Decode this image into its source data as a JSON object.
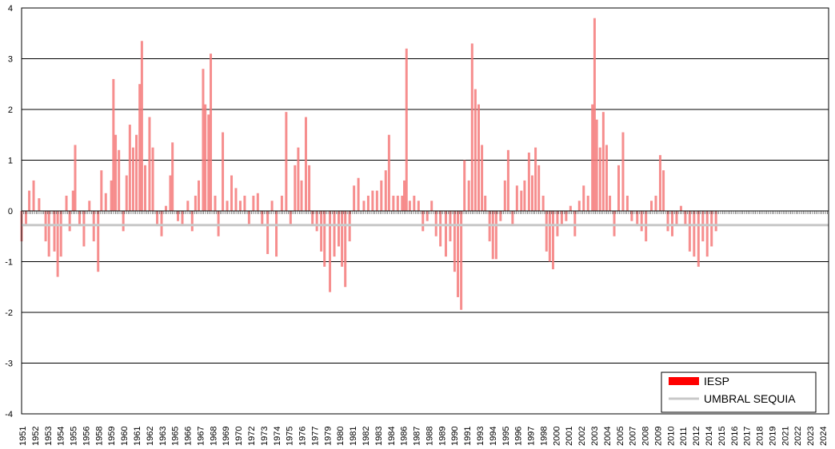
{
  "chart_data": {
    "type": "bar",
    "ylim": [
      -4,
      4
    ],
    "y_ticks": [
      "4",
      "3",
      "2",
      "1",
      "0",
      "-1",
      "-2",
      "-3",
      "-4"
    ],
    "grid": "horizontal",
    "legend_position": "bottom-right",
    "x_tick_labels": [
      "1951",
      "1952",
      "1953",
      "1954",
      "1955",
      "1956",
      "1958",
      "1959",
      "1960",
      "1961",
      "1962",
      "1963",
      "1965",
      "1966",
      "1967",
      "1968",
      "1969",
      "1970",
      "1972",
      "1973",
      "1974",
      "1975",
      "1976",
      "1977",
      "1979",
      "1980",
      "1981",
      "1982",
      "1983",
      "1984",
      "1986",
      "1987",
      "1988",
      "1989",
      "1990",
      "1991",
      "1993",
      "1994",
      "1995",
      "1996",
      "1997",
      "1998",
      "2000",
      "2001",
      "2002",
      "2003",
      "2004",
      "2005",
      "2007",
      "2008",
      "2009",
      "2010",
      "2011",
      "2012",
      "2014",
      "2015",
      "2016",
      "2017",
      "2018",
      "2019",
      "2021",
      "2022",
      "2023",
      "2024"
    ],
    "series": [
      {
        "name": "IESP",
        "color": "#ff0000",
        "bar_color": "#f47a7a"
      },
      {
        "name": "UMBRAL SEQUIA",
        "color": "#c8c8c8",
        "value": -0.28
      }
    ],
    "x_range": [
      1951.0,
      2024.8
    ],
    "monthly_sample": [
      [
        1951.0,
        -0.6
      ],
      [
        1951.4,
        -0.3
      ],
      [
        1951.7,
        0.4
      ],
      [
        1952.1,
        0.6
      ],
      [
        1952.6,
        0.25
      ],
      [
        1953.2,
        -0.6
      ],
      [
        1953.5,
        -0.9
      ],
      [
        1954.0,
        -0.8
      ],
      [
        1954.3,
        -1.3
      ],
      [
        1954.6,
        -0.9
      ],
      [
        1955.1,
        0.3
      ],
      [
        1955.4,
        -0.4
      ],
      [
        1955.7,
        0.4
      ],
      [
        1955.9,
        1.3
      ],
      [
        1956.3,
        -0.3
      ],
      [
        1956.7,
        -0.7
      ],
      [
        1957.2,
        0.2
      ],
      [
        1957.6,
        -0.6
      ],
      [
        1958.0,
        -1.2
      ],
      [
        1958.3,
        0.8
      ],
      [
        1958.7,
        0.35
      ],
      [
        1959.2,
        0.6
      ],
      [
        1959.4,
        2.6
      ],
      [
        1959.6,
        1.5
      ],
      [
        1959.9,
        1.2
      ],
      [
        1960.3,
        -0.4
      ],
      [
        1960.6,
        0.7
      ],
      [
        1960.9,
        1.7
      ],
      [
        1961.2,
        1.25
      ],
      [
        1961.5,
        1.5
      ],
      [
        1961.8,
        2.5
      ],
      [
        1962.0,
        3.35
      ],
      [
        1962.3,
        0.9
      ],
      [
        1962.7,
        1.85
      ],
      [
        1963.0,
        1.25
      ],
      [
        1963.4,
        -0.3
      ],
      [
        1963.8,
        -0.5
      ],
      [
        1964.2,
        0.1
      ],
      [
        1964.6,
        0.7
      ],
      [
        1964.8,
        1.35
      ],
      [
        1965.3,
        -0.2
      ],
      [
        1965.7,
        -0.3
      ],
      [
        1966.2,
        0.2
      ],
      [
        1966.6,
        -0.4
      ],
      [
        1966.9,
        0.3
      ],
      [
        1967.2,
        0.6
      ],
      [
        1967.6,
        2.8
      ],
      [
        1967.8,
        2.1
      ],
      [
        1968.1,
        1.9
      ],
      [
        1968.3,
        3.1
      ],
      [
        1968.7,
        0.3
      ],
      [
        1969.0,
        -0.5
      ],
      [
        1969.4,
        1.55
      ],
      [
        1969.8,
        0.2
      ],
      [
        1970.2,
        0.7
      ],
      [
        1970.6,
        0.45
      ],
      [
        1971.0,
        0.2
      ],
      [
        1971.4,
        0.3
      ],
      [
        1971.8,
        -0.3
      ],
      [
        1972.2,
        0.3
      ],
      [
        1972.6,
        0.35
      ],
      [
        1973.0,
        -0.3
      ],
      [
        1973.5,
        -0.85
      ],
      [
        1973.9,
        0.2
      ],
      [
        1974.3,
        -0.9
      ],
      [
        1974.8,
        0.3
      ],
      [
        1975.2,
        1.95
      ],
      [
        1975.6,
        -0.3
      ],
      [
        1976.0,
        0.9
      ],
      [
        1976.3,
        1.25
      ],
      [
        1976.6,
        0.6
      ],
      [
        1977.0,
        1.85
      ],
      [
        1977.3,
        0.9
      ],
      [
        1977.6,
        -0.3
      ],
      [
        1978.0,
        -0.4
      ],
      [
        1978.4,
        -0.8
      ],
      [
        1978.7,
        -1.1
      ],
      [
        1979.2,
        -1.6
      ],
      [
        1979.6,
        -0.9
      ],
      [
        1980.0,
        -0.7
      ],
      [
        1980.3,
        -1.1
      ],
      [
        1980.6,
        -1.5
      ],
      [
        1981.0,
        -0.6
      ],
      [
        1981.4,
        0.5
      ],
      [
        1981.8,
        0.65
      ],
      [
        1982.3,
        0.2
      ],
      [
        1982.7,
        0.3
      ],
      [
        1983.1,
        0.4
      ],
      [
        1983.5,
        0.4
      ],
      [
        1983.9,
        0.6
      ],
      [
        1984.3,
        0.8
      ],
      [
        1984.6,
        1.5
      ],
      [
        1985.0,
        0.3
      ],
      [
        1985.4,
        0.3
      ],
      [
        1985.8,
        0.3
      ],
      [
        1986.0,
        0.6
      ],
      [
        1986.2,
        3.2
      ],
      [
        1986.5,
        0.2
      ],
      [
        1986.9,
        0.3
      ],
      [
        1987.3,
        0.2
      ],
      [
        1987.7,
        -0.4
      ],
      [
        1988.1,
        -0.2
      ],
      [
        1988.5,
        0.2
      ],
      [
        1988.9,
        -0.5
      ],
      [
        1989.3,
        -0.7
      ],
      [
        1989.8,
        -0.9
      ],
      [
        1990.2,
        -0.6
      ],
      [
        1990.6,
        -1.2
      ],
      [
        1990.9,
        -1.7
      ],
      [
        1991.2,
        -1.95
      ],
      [
        1991.5,
        1.0
      ],
      [
        1991.9,
        0.6
      ],
      [
        1992.2,
        3.3
      ],
      [
        1992.5,
        2.4
      ],
      [
        1992.8,
        2.1
      ],
      [
        1993.1,
        1.3
      ],
      [
        1993.4,
        0.3
      ],
      [
        1993.8,
        -0.6
      ],
      [
        1994.1,
        -0.95
      ],
      [
        1994.4,
        -0.95
      ],
      [
        1994.8,
        -0.2
      ],
      [
        1995.2,
        0.6
      ],
      [
        1995.5,
        1.2
      ],
      [
        1995.9,
        -0.3
      ],
      [
        1996.3,
        0.5
      ],
      [
        1996.7,
        0.4
      ],
      [
        1997.0,
        0.6
      ],
      [
        1997.4,
        1.15
      ],
      [
        1997.7,
        0.7
      ],
      [
        1998.0,
        1.25
      ],
      [
        1998.3,
        0.9
      ],
      [
        1998.7,
        0.3
      ],
      [
        1999.0,
        -0.8
      ],
      [
        1999.3,
        -1.0
      ],
      [
        1999.6,
        -1.15
      ],
      [
        2000.0,
        -0.5
      ],
      [
        2000.4,
        -0.3
      ],
      [
        2000.8,
        -0.2
      ],
      [
        2001.2,
        0.1
      ],
      [
        2001.6,
        -0.5
      ],
      [
        2002.0,
        0.2
      ],
      [
        2002.4,
        0.5
      ],
      [
        2002.8,
        0.3
      ],
      [
        2003.2,
        2.1
      ],
      [
        2003.4,
        3.8
      ],
      [
        2003.6,
        1.8
      ],
      [
        2003.9,
        1.25
      ],
      [
        2004.2,
        1.95
      ],
      [
        2004.5,
        1.3
      ],
      [
        2004.8,
        0.3
      ],
      [
        2005.2,
        -0.5
      ],
      [
        2005.6,
        0.9
      ],
      [
        2006.0,
        1.55
      ],
      [
        2006.4,
        0.3
      ],
      [
        2006.8,
        -0.2
      ],
      [
        2007.3,
        -0.3
      ],
      [
        2007.7,
        -0.4
      ],
      [
        2008.1,
        -0.6
      ],
      [
        2008.6,
        0.2
      ],
      [
        2009.0,
        0.3
      ],
      [
        2009.4,
        1.1
      ],
      [
        2009.7,
        0.8
      ],
      [
        2010.1,
        -0.4
      ],
      [
        2010.5,
        -0.5
      ],
      [
        2010.9,
        -0.3
      ],
      [
        2011.3,
        0.1
      ],
      [
        2011.7,
        -0.3
      ],
      [
        2012.1,
        -0.8
      ],
      [
        2012.5,
        -0.9
      ],
      [
        2012.9,
        -1.1
      ],
      [
        2013.3,
        -0.6
      ],
      [
        2013.7,
        -0.9
      ],
      [
        2014.1,
        -0.7
      ],
      [
        2014.5,
        -0.4
      ]
    ]
  },
  "legend": {
    "iesp_label": "IESP",
    "umbral_label": "UMBRAL SEQUIA"
  }
}
